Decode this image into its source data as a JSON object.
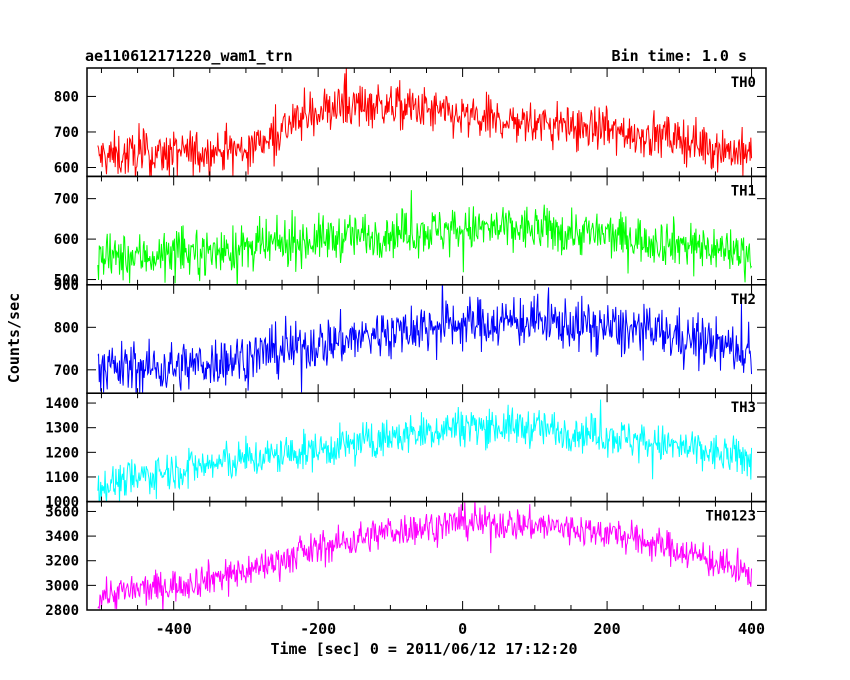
{
  "header": {
    "title": "ae110612171220_wam1_trn",
    "bin_time": "Bin time: 1.0 s"
  },
  "chart_data": {
    "type": "line",
    "title": "ae110612171220_wam1_trn",
    "xlabel": "Time [sec] 0 = 2011/06/12 17:12:20",
    "ylabel": "Counts/sec",
    "xlim": [
      -520,
      420
    ],
    "xticks": [
      -400,
      -200,
      0,
      200,
      400
    ],
    "x_start": -505,
    "x_end": 400,
    "panels": [
      {
        "name": "TH0",
        "color": "#ff0000",
        "ylim": [
          575,
          880
        ],
        "yticks": [
          600,
          700,
          800
        ],
        "trend": [
          [
            -505,
            630
          ],
          [
            -300,
            650
          ],
          [
            -230,
            730
          ],
          [
            -200,
            760
          ],
          [
            -130,
            780
          ],
          [
            -50,
            760
          ],
          [
            0,
            740
          ],
          [
            100,
            725
          ],
          [
            200,
            705
          ],
          [
            300,
            680
          ],
          [
            400,
            635
          ]
        ],
        "noise": 45,
        "spikes": 0.06,
        "series": []
      },
      {
        "name": "TH1",
        "color": "#00ff00",
        "ylim": [
          487,
          755
        ],
        "yticks": [
          500,
          600,
          700
        ],
        "trend": [
          [
            -505,
            550
          ],
          [
            -300,
            575
          ],
          [
            -200,
            600
          ],
          [
            -100,
            615
          ],
          [
            0,
            625
          ],
          [
            100,
            625
          ],
          [
            200,
            610
          ],
          [
            300,
            590
          ],
          [
            400,
            565
          ]
        ],
        "noise": 40,
        "spikes": 0.04,
        "series": []
      },
      {
        "name": "TH2",
        "color": "#0000ff",
        "ylim": [
          645,
          900
        ],
        "yticks": [
          700,
          800,
          900
        ],
        "trend": [
          [
            -505,
            705
          ],
          [
            -400,
            705
          ],
          [
            -300,
            730
          ],
          [
            -200,
            760
          ],
          [
            -100,
            790
          ],
          [
            0,
            810
          ],
          [
            100,
            815
          ],
          [
            200,
            800
          ],
          [
            300,
            780
          ],
          [
            400,
            740
          ]
        ],
        "noise": 42,
        "spikes": 0.05,
        "series": []
      },
      {
        "name": "TH3",
        "color": "#00ffff",
        "ylim": [
          1000,
          1440
        ],
        "yticks": [
          1000,
          1100,
          1200,
          1300,
          1400
        ],
        "trend": [
          [
            -505,
            1060
          ],
          [
            -400,
            1130
          ],
          [
            -300,
            1170
          ],
          [
            -200,
            1210
          ],
          [
            -100,
            1260
          ],
          [
            0,
            1310
          ],
          [
            100,
            1300
          ],
          [
            200,
            1270
          ],
          [
            300,
            1220
          ],
          [
            400,
            1170
          ]
        ],
        "noise": 55,
        "spikes": 0.04,
        "series": []
      },
      {
        "name": "TH0123",
        "color": "#ff00ff",
        "ylim": [
          2800,
          3680
        ],
        "yticks": [
          2800,
          3000,
          3200,
          3400,
          3600
        ],
        "trend": [
          [
            -505,
            2920
          ],
          [
            -400,
            3000
          ],
          [
            -300,
            3120
          ],
          [
            -200,
            3300
          ],
          [
            -100,
            3440
          ],
          [
            0,
            3510
          ],
          [
            100,
            3490
          ],
          [
            200,
            3430
          ],
          [
            300,
            3290
          ],
          [
            400,
            3080
          ]
        ],
        "noise": 95,
        "spikes": 0.04,
        "series": []
      }
    ]
  }
}
